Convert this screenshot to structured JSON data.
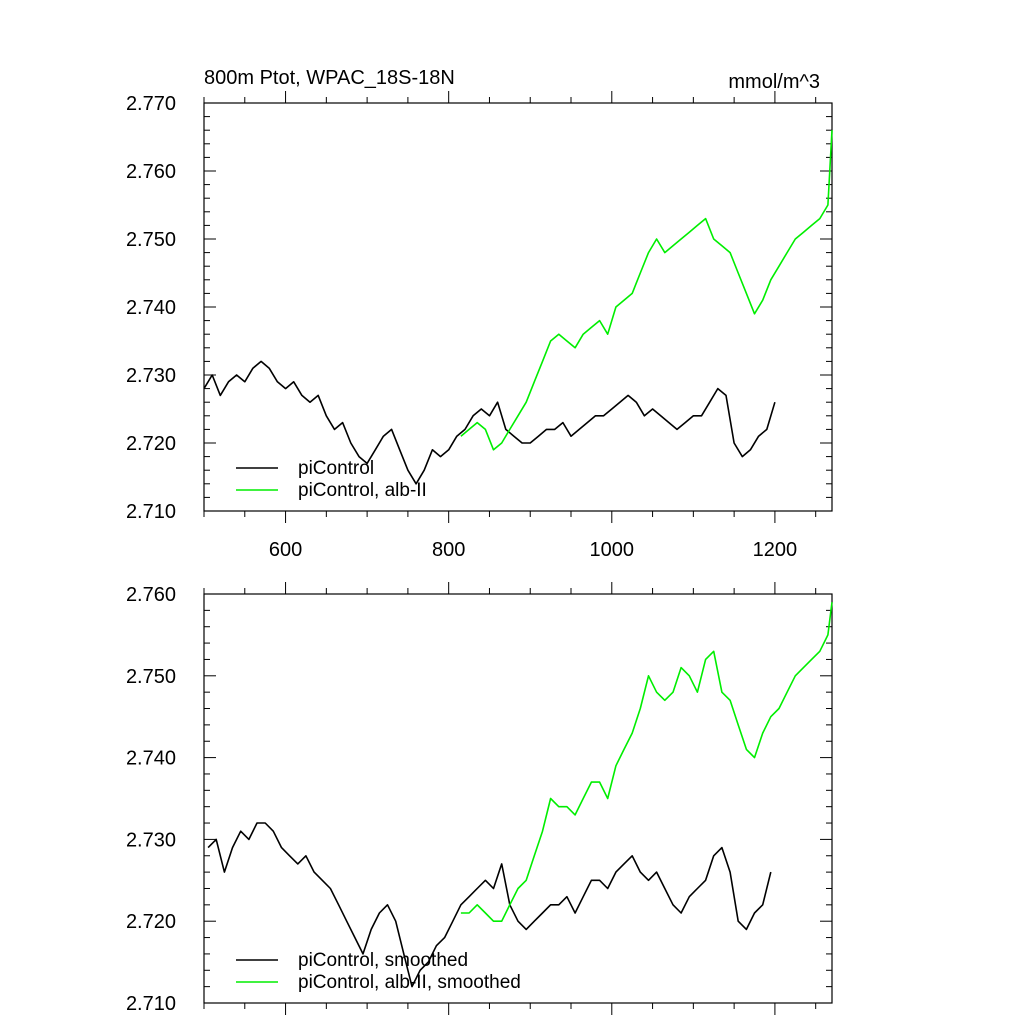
{
  "colors": {
    "control": "#000000",
    "albii": "#00ee00",
    "axis": "#000000",
    "background": "#ffffff"
  },
  "chart_data": [
    {
      "type": "line",
      "title": "800m Ptot, WPAC_18S-18N",
      "units": "mmol/m^3",
      "xlim": [
        500,
        1270
      ],
      "ylim": [
        2.71,
        2.77
      ],
      "xticks": [
        600,
        800,
        1000,
        1200
      ],
      "xtick_labels": [
        "600",
        "800",
        "1000",
        "1200"
      ],
      "yticks": [
        2.71,
        2.72,
        2.73,
        2.74,
        2.75,
        2.76,
        2.77
      ],
      "ytick_labels": [
        "2.710",
        "2.720",
        "2.730",
        "2.740",
        "2.750",
        "2.760",
        "2.770"
      ],
      "grid": false,
      "legend_position": "bottom-left",
      "series": [
        {
          "name": "piControl",
          "color": "#000000",
          "x": [
            500,
            510,
            520,
            530,
            540,
            550,
            560,
            570,
            580,
            590,
            600,
            610,
            620,
            630,
            640,
            650,
            660,
            670,
            680,
            690,
            700,
            710,
            720,
            730,
            740,
            750,
            760,
            770,
            780,
            790,
            800,
            810,
            820,
            830,
            840,
            850,
            860,
            870,
            880,
            890,
            900,
            910,
            920,
            930,
            940,
            950,
            960,
            970,
            980,
            990,
            1000,
            1010,
            1020,
            1030,
            1040,
            1050,
            1060,
            1070,
            1080,
            1090,
            1100,
            1110,
            1120,
            1130,
            1140,
            1150,
            1160,
            1170,
            1180,
            1190,
            1200
          ],
          "y": [
            2.728,
            2.73,
            2.727,
            2.729,
            2.73,
            2.729,
            2.731,
            2.732,
            2.731,
            2.729,
            2.728,
            2.729,
            2.727,
            2.726,
            2.727,
            2.724,
            2.722,
            2.723,
            2.72,
            2.718,
            2.717,
            2.719,
            2.721,
            2.722,
            2.719,
            2.716,
            2.714,
            2.716,
            2.719,
            2.718,
            2.719,
            2.721,
            2.722,
            2.724,
            2.725,
            2.724,
            2.726,
            2.722,
            2.721,
            2.72,
            2.72,
            2.721,
            2.722,
            2.722,
            2.723,
            2.721,
            2.722,
            2.723,
            2.724,
            2.724,
            2.725,
            2.726,
            2.727,
            2.726,
            2.724,
            2.725,
            2.724,
            2.723,
            2.722,
            2.723,
            2.724,
            2.724,
            2.726,
            2.728,
            2.727,
            2.72,
            2.718,
            2.719,
            2.721,
            2.722,
            2.726
          ]
        },
        {
          "name": "piControl, alb-II",
          "color": "#00ee00",
          "x": [
            815,
            825,
            835,
            845,
            855,
            865,
            875,
            885,
            895,
            905,
            915,
            925,
            935,
            945,
            955,
            965,
            975,
            985,
            995,
            1005,
            1015,
            1025,
            1035,
            1045,
            1055,
            1065,
            1075,
            1085,
            1095,
            1105,
            1115,
            1125,
            1135,
            1145,
            1155,
            1165,
            1175,
            1185,
            1195,
            1205,
            1215,
            1225,
            1235,
            1245,
            1255,
            1265,
            1270
          ],
          "y": [
            2.721,
            2.722,
            2.723,
            2.722,
            2.719,
            2.72,
            2.722,
            2.724,
            2.726,
            2.729,
            2.732,
            2.735,
            2.736,
            2.735,
            2.734,
            2.736,
            2.737,
            2.738,
            2.736,
            2.74,
            2.741,
            2.742,
            2.745,
            2.748,
            2.75,
            2.748,
            2.749,
            2.75,
            2.751,
            2.752,
            2.753,
            2.75,
            2.749,
            2.748,
            2.745,
            2.742,
            2.739,
            2.741,
            2.744,
            2.746,
            2.748,
            2.75,
            2.751,
            2.752,
            2.753,
            2.755,
            2.766
          ]
        }
      ]
    },
    {
      "type": "line",
      "title": "",
      "xlim": [
        500,
        1270
      ],
      "ylim": [
        2.71,
        2.76
      ],
      "xticks": [
        600,
        800,
        1000,
        1200
      ],
      "xtick_labels": [],
      "yticks": [
        2.71,
        2.72,
        2.73,
        2.74,
        2.75,
        2.76
      ],
      "ytick_labels": [
        "2.710",
        "2.720",
        "2.730",
        "2.740",
        "2.750",
        "2.760"
      ],
      "grid": false,
      "legend_position": "bottom-left",
      "series": [
        {
          "name": "piControl, smoothed",
          "color": "#000000",
          "x": [
            505,
            515,
            525,
            535,
            545,
            555,
            565,
            575,
            585,
            595,
            605,
            615,
            625,
            635,
            645,
            655,
            665,
            675,
            685,
            695,
            705,
            715,
            725,
            735,
            745,
            755,
            765,
            775,
            785,
            795,
            805,
            815,
            825,
            835,
            845,
            855,
            865,
            875,
            885,
            895,
            905,
            915,
            925,
            935,
            945,
            955,
            965,
            975,
            985,
            995,
            1005,
            1015,
            1025,
            1035,
            1045,
            1055,
            1065,
            1075,
            1085,
            1095,
            1105,
            1115,
            1125,
            1135,
            1145,
            1155,
            1165,
            1175,
            1185,
            1195
          ],
          "y": [
            2.729,
            2.73,
            2.726,
            2.729,
            2.731,
            2.73,
            2.732,
            2.732,
            2.731,
            2.729,
            2.728,
            2.727,
            2.728,
            2.726,
            2.725,
            2.724,
            2.722,
            2.72,
            2.718,
            2.716,
            2.719,
            2.721,
            2.722,
            2.72,
            2.716,
            2.712,
            2.714,
            2.715,
            2.717,
            2.718,
            2.72,
            2.722,
            2.723,
            2.724,
            2.725,
            2.724,
            2.727,
            2.722,
            2.72,
            2.719,
            2.72,
            2.721,
            2.722,
            2.722,
            2.723,
            2.721,
            2.723,
            2.725,
            2.725,
            2.724,
            2.726,
            2.727,
            2.728,
            2.726,
            2.725,
            2.726,
            2.724,
            2.722,
            2.721,
            2.723,
            2.724,
            2.725,
            2.728,
            2.729,
            2.726,
            2.72,
            2.719,
            2.721,
            2.722,
            2.726
          ]
        },
        {
          "name": "piControl, alb-II, smoothed",
          "color": "#00ee00",
          "x": [
            815,
            825,
            835,
            845,
            855,
            865,
            875,
            885,
            895,
            905,
            915,
            925,
            935,
            945,
            955,
            965,
            975,
            985,
            995,
            1005,
            1015,
            1025,
            1035,
            1045,
            1055,
            1065,
            1075,
            1085,
            1095,
            1105,
            1115,
            1125,
            1135,
            1145,
            1155,
            1165,
            1175,
            1185,
            1195,
            1205,
            1215,
            1225,
            1235,
            1245,
            1255,
            1265,
            1270
          ],
          "y": [
            2.721,
            2.721,
            2.722,
            2.721,
            2.72,
            2.72,
            2.722,
            2.724,
            2.725,
            2.728,
            2.731,
            2.735,
            2.734,
            2.734,
            2.733,
            2.735,
            2.737,
            2.737,
            2.735,
            2.739,
            2.741,
            2.743,
            2.746,
            2.75,
            2.748,
            2.747,
            2.748,
            2.751,
            2.75,
            2.748,
            2.752,
            2.753,
            2.748,
            2.747,
            2.744,
            2.741,
            2.74,
            2.743,
            2.745,
            2.746,
            2.748,
            2.75,
            2.751,
            2.752,
            2.753,
            2.755,
            2.759
          ]
        }
      ]
    }
  ]
}
